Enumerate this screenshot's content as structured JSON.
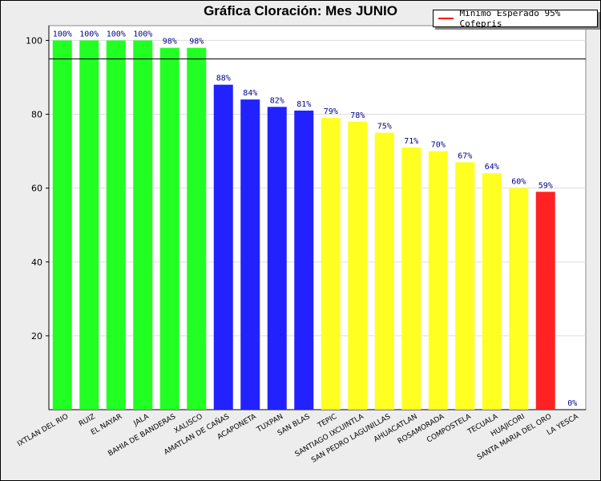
{
  "chart_data": {
    "type": "bar",
    "title": "Gráfica Cloración: Mes JUNIO",
    "legend": [
      {
        "label": "Minimo Esperado 95% Cofepris",
        "color": "#ff0000"
      }
    ],
    "threshold": 95,
    "ylim": [
      0,
      104
    ],
    "yticks": [
      20,
      40,
      60,
      80,
      100
    ],
    "categories": [
      "IXTLAN DEL RIO",
      "RUIZ",
      "EL NAYAR",
      "JALA",
      "BAHIA DE BANDERAS",
      "XALISCO",
      "AMATLAN DE CAÑAS",
      "ACAPONETA",
      "TUXPAN",
      "SAN BLAS",
      "TEPIC",
      "SANTIAGO IXCUINTLA",
      "SAN PEDRO LAGUNILLAS",
      "AHUACATLAN",
      "ROSAMORADA",
      "COMPOSTELA",
      "TECUALA",
      "HUAJICORI",
      "SANTA MARIA DEL ORO",
      "LA YESCA"
    ],
    "values": [
      100,
      100,
      100,
      100,
      98,
      98,
      88,
      84,
      82,
      81,
      79,
      78,
      75,
      71,
      70,
      67,
      64,
      60,
      59,
      0
    ],
    "labels": [
      "100%",
      "100%",
      "100%",
      "100%",
      "98%",
      "98%",
      "88%",
      "84%",
      "82%",
      "81%",
      "79%",
      "78%",
      "75%",
      "71%",
      "70%",
      "67%",
      "64%",
      "60%",
      "59%",
      "0%"
    ],
    "colors": [
      "#22ff22",
      "#22ff22",
      "#22ff22",
      "#22ff22",
      "#22ff22",
      "#22ff22",
      "#2222ff",
      "#2222ff",
      "#2222ff",
      "#2222ff",
      "#ffff22",
      "#ffff22",
      "#ffff22",
      "#ffff22",
      "#ffff22",
      "#ffff22",
      "#ffff22",
      "#ffff22",
      "#ff2222",
      "#ff2222"
    ]
  }
}
